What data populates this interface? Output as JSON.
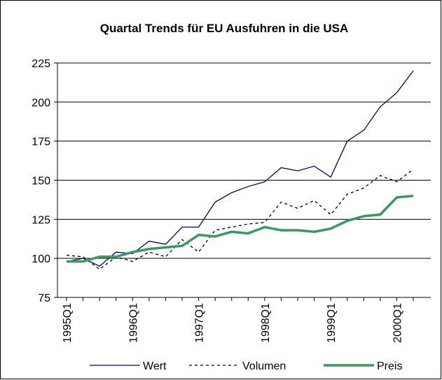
{
  "chart_data": {
    "type": "line",
    "title": "Quartal Trends für EU Ausfuhren in die USA",
    "categories": [
      "1995Q1",
      null,
      null,
      null,
      "1996Q1",
      null,
      null,
      null,
      "1997Q1",
      null,
      null,
      null,
      "1998Q1",
      null,
      null,
      null,
      "1999Q1",
      null,
      null,
      null,
      "2000Q1",
      null
    ],
    "series": [
      {
        "name": "Wert",
        "color": "#000080",
        "width": 1.3,
        "dash": false,
        "values": [
          98,
          100,
          95,
          104,
          103,
          111,
          109,
          120,
          120,
          136,
          142,
          146,
          149,
          158,
          156,
          159,
          152,
          175,
          182,
          197,
          206,
          220
        ]
      },
      {
        "name": "Volumen",
        "color": "#000000",
        "width": 1.3,
        "dash": true,
        "values": [
          102,
          101,
          93,
          101,
          98,
          104,
          101,
          112,
          104,
          118,
          120,
          122,
          123,
          136,
          132,
          137,
          128,
          141,
          145,
          153,
          149,
          157
        ]
      },
      {
        "name": "Preis",
        "color": "#3a9a5e",
        "width": 3.5,
        "dash": false,
        "values": [
          98,
          98,
          101,
          101,
          104,
          106,
          107,
          108,
          115,
          114,
          117,
          116,
          120,
          118,
          118,
          117,
          119,
          124,
          127,
          128,
          139,
          140
        ]
      }
    ],
    "ylim": [
      75,
      225
    ],
    "yticks": [
      75,
      100,
      125,
      150,
      175,
      200,
      225
    ],
    "grid": true,
    "legend": "bottom"
  }
}
